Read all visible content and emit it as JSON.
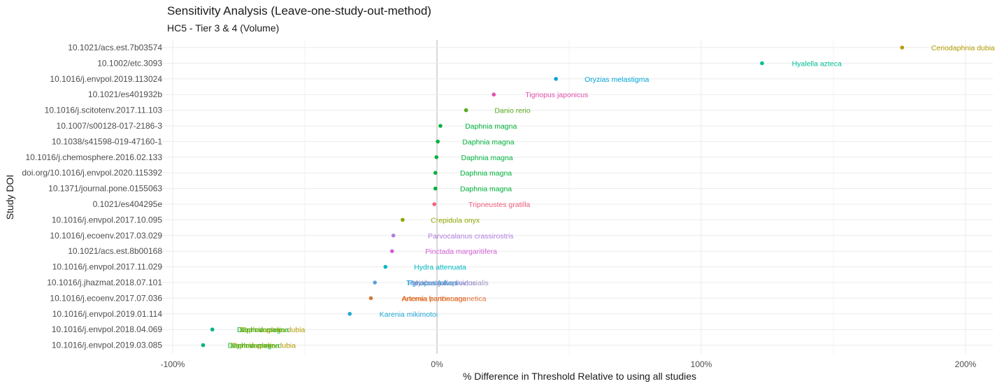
{
  "chart_data": {
    "type": "scatter",
    "title": "Sensitivity Analysis (Leave-one-study-out-method)",
    "subtitle": "HC5 - Tier 3 & 4 (Volume)",
    "xlabel": "% Difference in Threshold Relative to using all studies",
    "ylabel": "Study DOI",
    "xlim": [
      -100,
      200
    ],
    "xticks": [
      -100,
      0,
      100,
      200
    ],
    "xtick_labels": [
      "-100%",
      "0%",
      "100%",
      "200%"
    ],
    "grid": true,
    "points": [
      {
        "doi": "10.1021/acs.est.7b03574",
        "x": 176,
        "labels": [
          {
            "text": "Ceriodaphnia dubia",
            "color": "#b39c00"
          }
        ],
        "color": "#b39c00"
      },
      {
        "doi": "10.1002/etc.3093",
        "x": 123,
        "labels": [
          {
            "text": "Hyalella azteca",
            "color": "#00bf96"
          }
        ],
        "color": "#00bf96"
      },
      {
        "doi": "10.1016/j.envpol.2019.113024",
        "x": 45,
        "labels": [
          {
            "text": "Oryzias melastigma",
            "color": "#00a5d6"
          }
        ],
        "color": "#00a5d6"
      },
      {
        "doi": "10.1021/es401932b",
        "x": 21.5,
        "labels": [
          {
            "text": "Tigriopus japonicus",
            "color": "#e250b0"
          }
        ],
        "color": "#e250b0"
      },
      {
        "doi": "10.1016/j.scitotenv.2017.11.103",
        "x": 11,
        "labels": [
          {
            "text": "Danio rerio",
            "color": "#58aa1d"
          }
        ],
        "color": "#58aa1d"
      },
      {
        "doi": "10.1007/s00128-017-2186-3",
        "x": 1.3,
        "labels": [
          {
            "text": "Daphnia magna",
            "color": "#00b33c"
          }
        ],
        "color": "#00b33c"
      },
      {
        "doi": "10.1038/s41598-019-47160-1",
        "x": 0.3,
        "labels": [
          {
            "text": "Daphnia magna",
            "color": "#00b33c"
          }
        ],
        "color": "#00b33c"
      },
      {
        "doi": "10.1016/j.chemosphere.2016.02.133",
        "x": -0.2,
        "labels": [
          {
            "text": "Daphnia magna",
            "color": "#00b33c"
          }
        ],
        "color": "#00b33c"
      },
      {
        "doi": "doi.org/10.1016/j.envpol.2020.115392",
        "x": -0.6,
        "labels": [
          {
            "text": "Daphnia magna",
            "color": "#00b33c"
          }
        ],
        "color": "#00b33c"
      },
      {
        "doi": "10.1371/journal.pone.0155063",
        "x": -0.6,
        "labels": [
          {
            "text": "Daphnia magna",
            "color": "#00b33c"
          }
        ],
        "color": "#00b33c"
      },
      {
        "doi": "0.1021/es404295e",
        "x": -1,
        "labels": [
          {
            "text": "Tripneustes gratilla",
            "color": "#f0607f"
          }
        ],
        "color": "#f0607f"
      },
      {
        "doi": "10.1016/j.envpol.2017.10.095",
        "x": -13,
        "labels": [
          {
            "text": "Crepidula onyx",
            "color": "#8ea400"
          }
        ],
        "color": "#8ea400"
      },
      {
        "doi": "10.1016/j.ecoenv.2017.03.029",
        "x": -16.5,
        "labels": [
          {
            "text": "Parvocalanus crassirostris",
            "color": "#b07ee0"
          }
        ],
        "color": "#b07ee0"
      },
      {
        "doi": "10.1021/acs.est.8b00168",
        "x": -17,
        "labels": [
          {
            "text": "Pinctada margaritifera",
            "color": "#d35fd6"
          }
        ],
        "color": "#d35fd6"
      },
      {
        "doi": "10.1016/j.envpol.2017.11.029",
        "x": -19.5,
        "labels": [
          {
            "text": "Hydra attenuata",
            "color": "#00b8c2"
          }
        ],
        "color": "#00b8c2"
      },
      {
        "doi": "10.1016/j.jhazmat.2018.07.101",
        "x": -23.5,
        "labels": [
          {
            "text": "Paracentrotus lividus",
            "color": "#7e8fd8"
          },
          {
            "text": "Tigriopus fulvus",
            "color": "#00a5d6"
          },
          {
            "text": "Mytilus galloprovincialis",
            "color": "#9f8fc4"
          }
        ],
        "color": "#5b9fe0"
      },
      {
        "doi": "10.1016/j.ecoenv.2017.07.036",
        "x": -25,
        "labels": [
          {
            "text": "Artemia franciscana",
            "color": "#e0843a"
          },
          {
            "text": "Artemia parthenogenetica",
            "color": "#e2703a"
          }
        ],
        "color": "#d2773a"
      },
      {
        "doi": "10.1016/j.envpol.2019.01.114",
        "x": -33,
        "labels": [
          {
            "text": "Karenia mikimotoi",
            "color": "#22a8d2"
          }
        ],
        "color": "#22a8d2"
      },
      {
        "doi": "10.1016/j.envpol.2018.04.069",
        "x": -85,
        "labels": [
          {
            "text": "Ceriodaphnia dubia",
            "color": "#b39c00"
          },
          {
            "text": "Daphnia magna",
            "color": "#00b33c"
          },
          {
            "text": "Daphnia pulex",
            "color": "#7fae00"
          }
        ],
        "color": "#00b383"
      },
      {
        "doi": "10.1016/j.envpol.2019.03.085",
        "x": -88.5,
        "labels": [
          {
            "text": "Ceriodaphnia dubia",
            "color": "#b39c00"
          },
          {
            "text": "Daphnia magna",
            "color": "#00b33c"
          },
          {
            "text": "Daphnia pulex",
            "color": "#7fae00"
          }
        ],
        "color": "#00b383"
      }
    ]
  }
}
